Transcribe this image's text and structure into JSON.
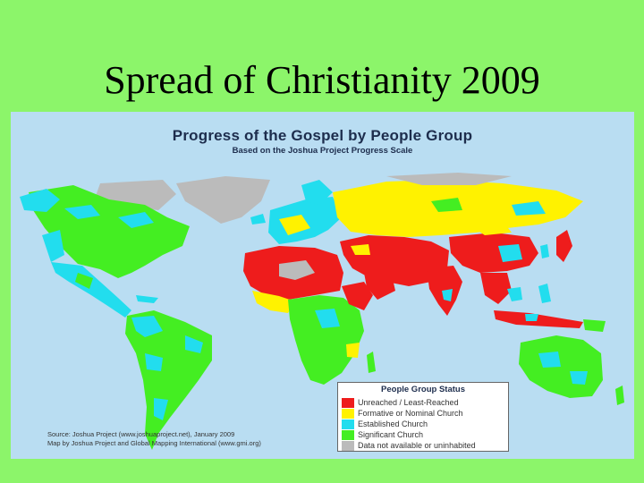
{
  "slide": {
    "title": "Spread of Christianity 2009"
  },
  "map": {
    "title": "Progress of the Gospel by People Group",
    "subtitle": "Based on the Joshua Project Progress Scale",
    "ocean_color": "#B9DDF2",
    "source_line_1": "Source: Joshua Project (www.joshuaproject.net), January 2009",
    "source_line_2": "Map by Joshua Project and Global Mapping International (www.gmi.org)"
  },
  "legend": {
    "title": "People Group Status",
    "items": [
      {
        "label": "Unreached / Least-Reached",
        "color": "#EE1C1C"
      },
      {
        "label": "Formative or Nominal Church",
        "color": "#FFF200"
      },
      {
        "label": "Established Church",
        "color": "#22DDEE"
      },
      {
        "label": "Significant Church",
        "color": "#44EE22"
      },
      {
        "label": "Data not available or uninhabited",
        "color": "#BBBBBB"
      }
    ]
  }
}
